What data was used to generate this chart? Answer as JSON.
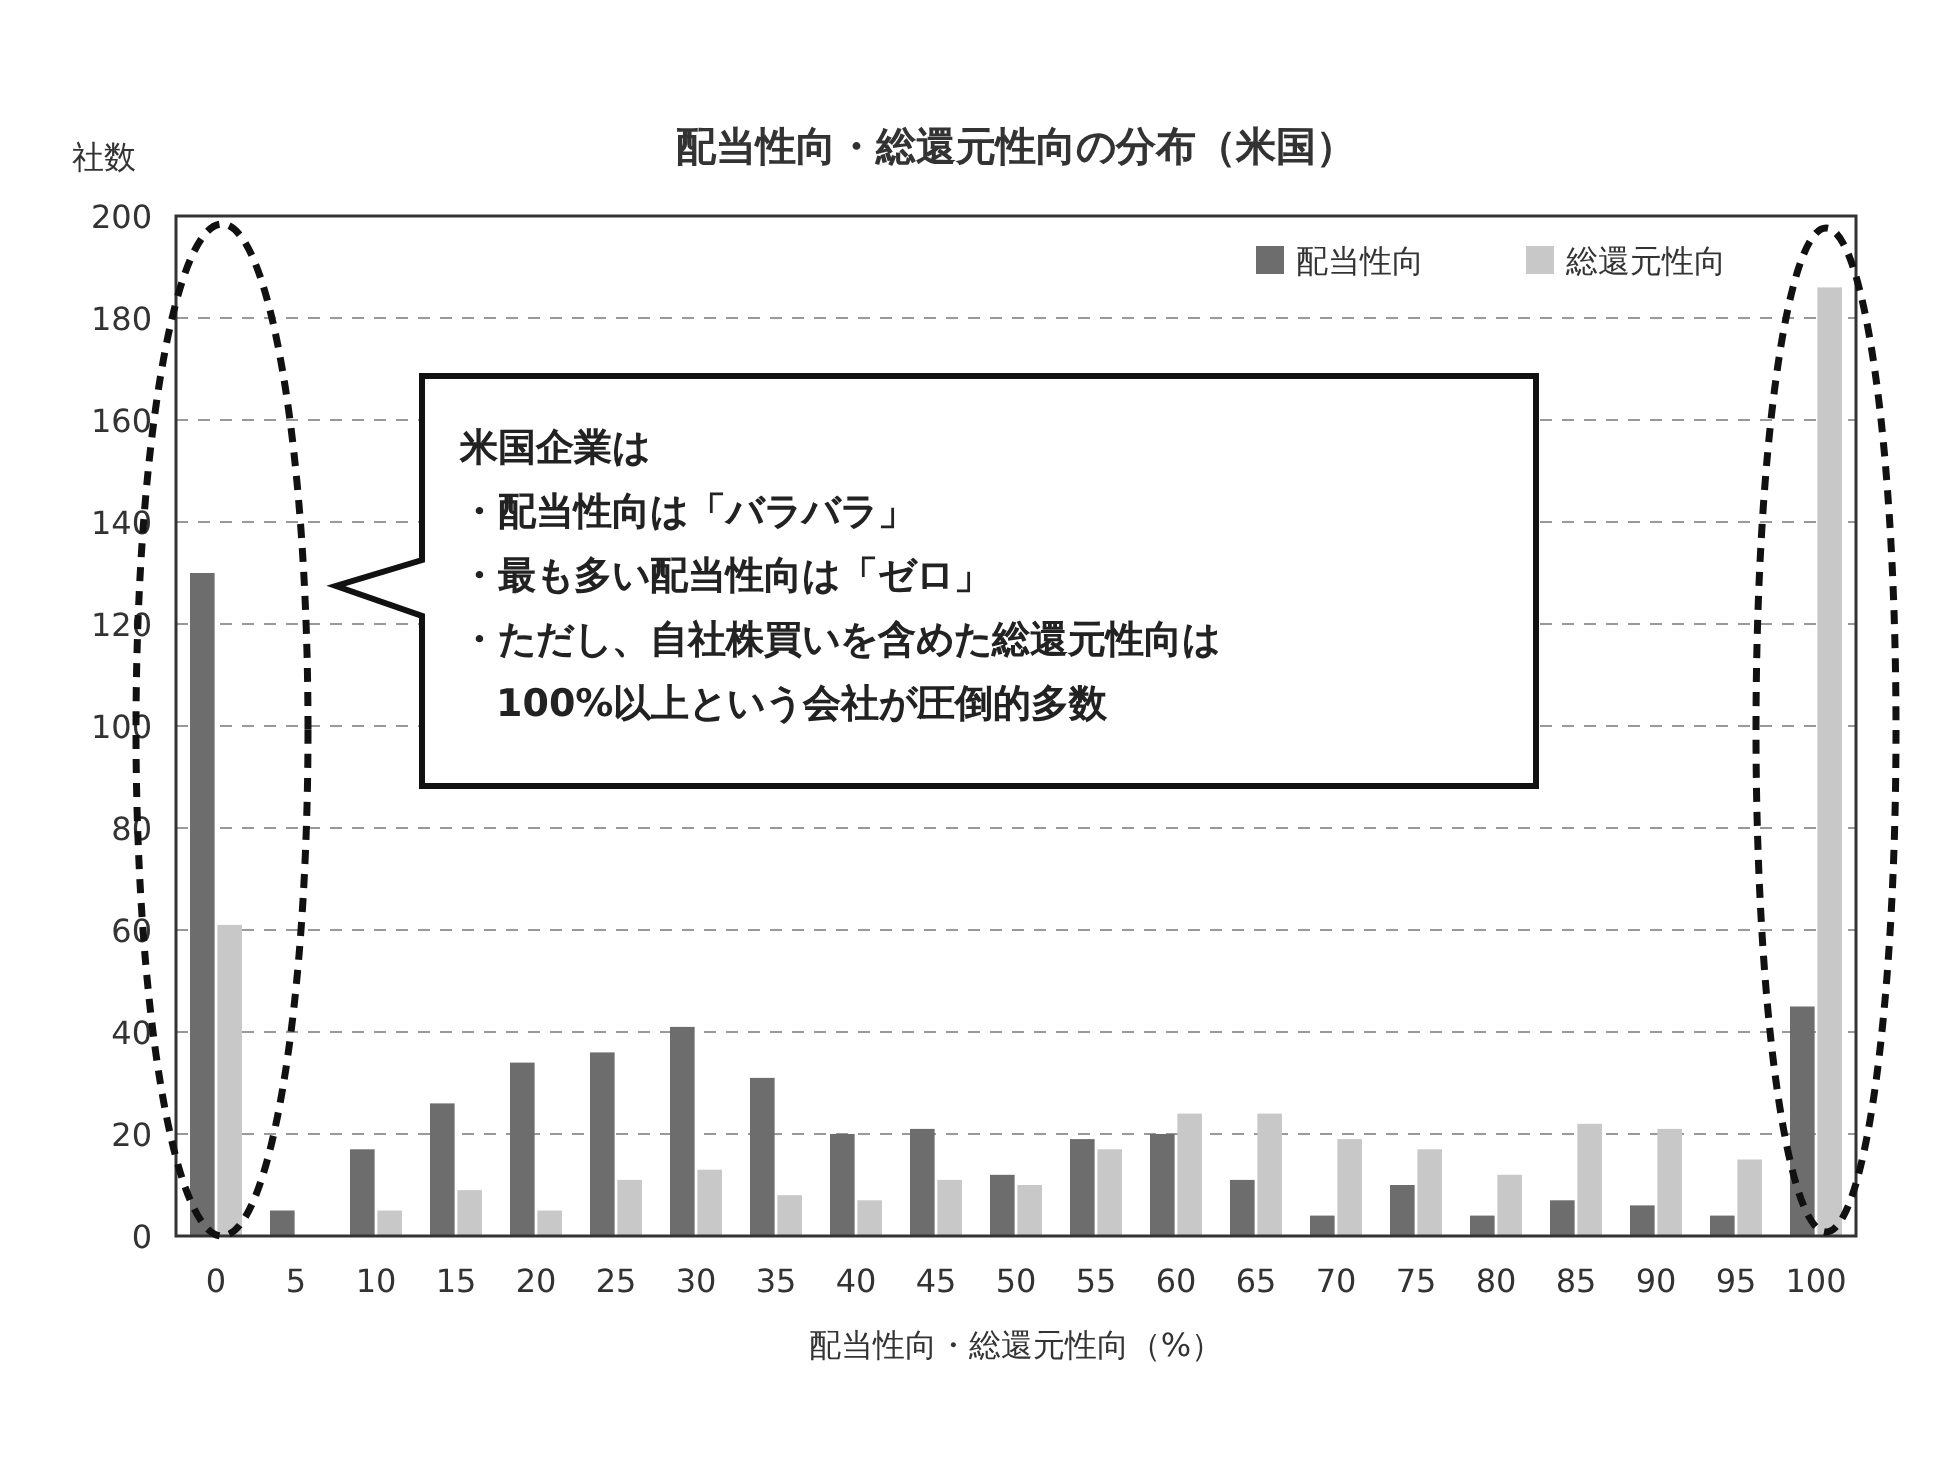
{
  "chart_data": {
    "type": "bar",
    "title": "配当性向・総還元性向の分布（米国）",
    "xlabel": "配当性向・総還元性向（%）",
    "ylabel": "社数",
    "categories": [
      "0",
      "5",
      "10",
      "15",
      "20",
      "25",
      "30",
      "35",
      "40",
      "45",
      "50",
      "55",
      "60",
      "65",
      "70",
      "75",
      "80",
      "85",
      "90",
      "95",
      "100"
    ],
    "series": [
      {
        "name": "配当性向",
        "color": "#6d6d6d",
        "values": [
          130,
          5,
          17,
          26,
          34,
          36,
          41,
          31,
          20,
          21,
          12,
          19,
          20,
          11,
          4,
          10,
          4,
          7,
          6,
          4,
          45
        ]
      },
      {
        "name": "総還元性向",
        "color": "#c8c8c8",
        "values": [
          61,
          0,
          5,
          9,
          5,
          11,
          13,
          8,
          7,
          11,
          10,
          17,
          24,
          24,
          19,
          17,
          12,
          22,
          21,
          15,
          186
        ]
      }
    ],
    "ylim": [
      0,
      200
    ],
    "yticks": [
      0,
      20,
      40,
      60,
      80,
      100,
      120,
      140,
      160,
      180,
      200
    ],
    "grid": "y",
    "line_style": "dashed",
    "legend": "top right",
    "annotations": [
      "米国企業は",
      "・配当性向は「バラバラ」",
      "・最も多い配当性向は「ゼロ」",
      "・ただし、自社株買いを含めた総還元性向は",
      "100%以上という会社が圧倒的多数"
    ]
  }
}
